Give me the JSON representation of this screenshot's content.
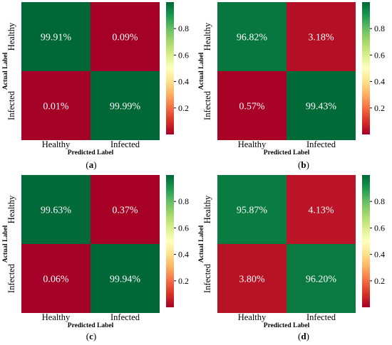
{
  "panels": [
    {
      "caption_letter": "a",
      "ylabel": "Actual Label",
      "xlabel": "Predicted Label",
      "row_labels": [
        "Healthy",
        "Infected"
      ],
      "col_labels": [
        "Healthy",
        "Infected"
      ],
      "cell_labels": [
        [
          "99.91%",
          "0.09%"
        ],
        [
          "0.01%",
          "99.99%"
        ]
      ]
    },
    {
      "caption_letter": "b",
      "ylabel": "Actual Label",
      "xlabel": "Predicted Label",
      "row_labels": [
        "Healthy",
        "Infected"
      ],
      "col_labels": [
        "Healthy",
        "Infected"
      ],
      "cell_labels": [
        [
          "96.82%",
          "3.18%"
        ],
        [
          "0.57%",
          "99.43%"
        ]
      ]
    },
    {
      "caption_letter": "c",
      "ylabel": "Actual Label",
      "xlabel": "Predicted Label",
      "row_labels": [
        "Healthy",
        "Infected"
      ],
      "col_labels": [
        "Healthy",
        "Infected"
      ],
      "cell_labels": [
        [
          "99.63%",
          "0.37%"
        ],
        [
          "0.06%",
          "99.94%"
        ]
      ]
    },
    {
      "caption_letter": "d",
      "ylabel": "Actual Label",
      "xlabel": "Predicted Label",
      "row_labels": [
        "Healthy",
        "Infected"
      ],
      "col_labels": [
        "Healthy",
        "Infected"
      ],
      "cell_labels": [
        [
          "95.87%",
          "4.13%"
        ],
        [
          "3.80%",
          "96.20%"
        ]
      ]
    }
  ],
  "colorbar": {
    "ticks": [
      0.2,
      0.4,
      0.6,
      0.8
    ],
    "tick_labels": [
      "0.2",
      "0.4",
      "0.6",
      "0.8"
    ],
    "range": [
      0,
      1
    ],
    "colors": [
      "#a50026",
      "#d73027",
      "#f46d43",
      "#fdae61",
      "#fee08b",
      "#ffffbf",
      "#d9ef8b",
      "#a6d96a",
      "#66bd63",
      "#1a9850",
      "#006837"
    ]
  },
  "chart_data": [
    {
      "type": "heatmap",
      "title": "",
      "xlabel": "Predicted Label",
      "ylabel": "Actual Label",
      "x_categories": [
        "Healthy",
        "Infected"
      ],
      "y_categories": [
        "Healthy",
        "Infected"
      ],
      "values": [
        [
          0.9991,
          0.0009
        ],
        [
          0.0001,
          0.9999
        ]
      ],
      "colorbar_range": [
        0,
        1
      ],
      "colorbar_ticks": [
        0.2,
        0.4,
        0.6,
        0.8
      ]
    },
    {
      "type": "heatmap",
      "title": "",
      "xlabel": "Predicted Label",
      "ylabel": "Actual Label",
      "x_categories": [
        "Healthy",
        "Infected"
      ],
      "y_categories": [
        "Healthy",
        "Infected"
      ],
      "values": [
        [
          0.9682,
          0.0318
        ],
        [
          0.0057,
          0.9943
        ]
      ],
      "colorbar_range": [
        0,
        1
      ],
      "colorbar_ticks": [
        0.2,
        0.4,
        0.6,
        0.8
      ]
    },
    {
      "type": "heatmap",
      "title": "",
      "xlabel": "Predicted Label",
      "ylabel": "Actual Label",
      "x_categories": [
        "Healthy",
        "Infected"
      ],
      "y_categories": [
        "Healthy",
        "Infected"
      ],
      "values": [
        [
          0.9963,
          0.0037
        ],
        [
          0.0006,
          0.9994
        ]
      ],
      "colorbar_range": [
        0,
        1
      ],
      "colorbar_ticks": [
        0.2,
        0.4,
        0.6,
        0.8
      ]
    },
    {
      "type": "heatmap",
      "title": "",
      "xlabel": "Predicted Label",
      "ylabel": "Actual Label",
      "x_categories": [
        "Healthy",
        "Infected"
      ],
      "y_categories": [
        "Healthy",
        "Infected"
      ],
      "values": [
        [
          0.9587,
          0.0413
        ],
        [
          0.038,
          0.962
        ]
      ],
      "colorbar_range": [
        0,
        1
      ],
      "colorbar_ticks": [
        0.2,
        0.4,
        0.6,
        0.8
      ]
    }
  ]
}
